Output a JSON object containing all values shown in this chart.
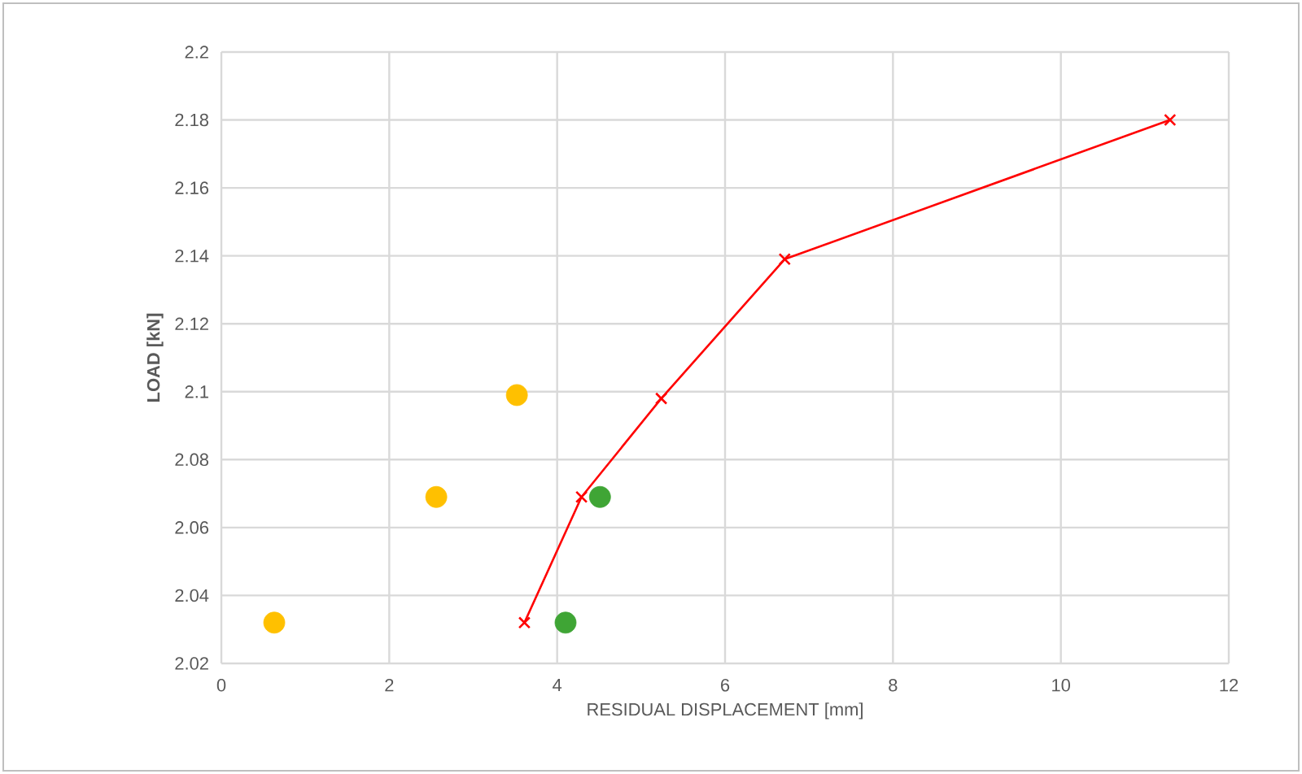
{
  "chart_data": {
    "type": "scatter",
    "xlabel": "RESIDUAL DISPLACEMENT [mm]",
    "ylabel": "LOAD [kN]",
    "xlim": [
      0,
      12
    ],
    "xticks": [
      0,
      2,
      4,
      6,
      8,
      10,
      12
    ],
    "ylim": [
      2.02,
      2.2
    ],
    "yticks": [
      2.02,
      2.04,
      2.06,
      2.08,
      2.1,
      2.12,
      2.14,
      2.16,
      2.18,
      2.2
    ],
    "grid": true,
    "series": [
      {
        "marker": "circle",
        "color": "#ffc000",
        "x": [
          0.63,
          2.56,
          3.52
        ],
        "values": [
          2.032,
          2.069,
          2.099
        ]
      },
      {
        "marker": "circle",
        "color": "#3fa535",
        "x": [
          4.1,
          4.51
        ],
        "values": [
          2.032,
          2.069
        ]
      },
      {
        "type": "line",
        "marker": "cross",
        "color": "#ff0000",
        "x": [
          3.61,
          4.29,
          5.24,
          6.71,
          11.3
        ],
        "values": [
          2.032,
          2.069,
          2.098,
          2.139,
          2.18
        ]
      }
    ]
  }
}
